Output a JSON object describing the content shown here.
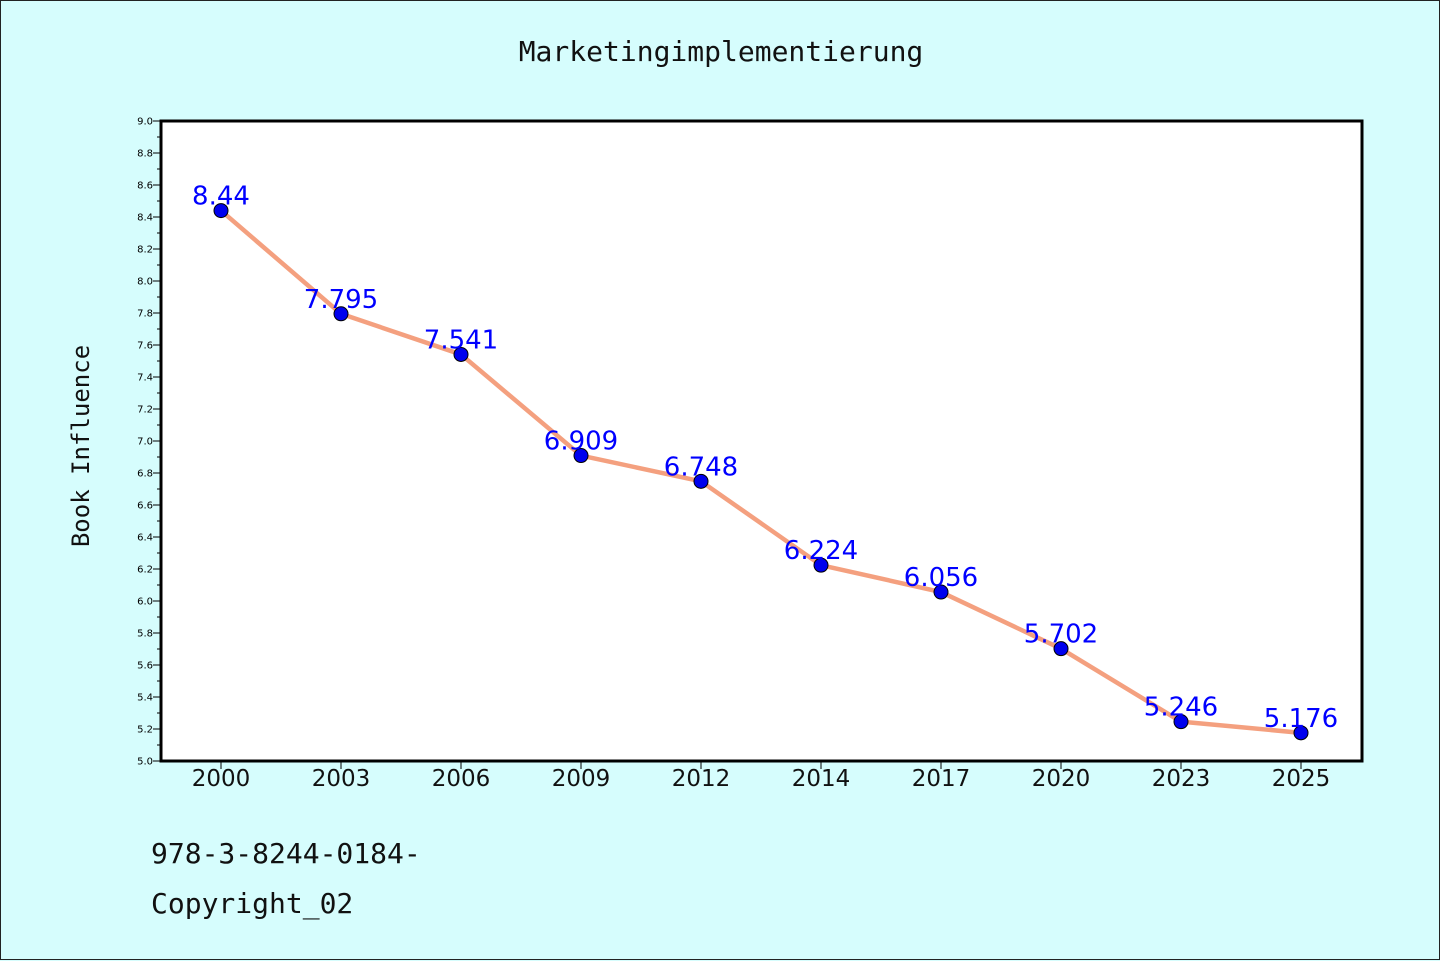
{
  "chart_data": {
    "type": "line",
    "title": "Marketingimplementierung",
    "xlabel": "",
    "ylabel": "Book Influence",
    "categories": [
      "2000",
      "2003",
      "2006",
      "2009",
      "2012",
      "2014",
      "2017",
      "2020",
      "2023",
      "2025"
    ],
    "series": [
      {
        "values": [
          8.44,
          7.795,
          7.541,
          6.909,
          6.748,
          6.224,
          6.056,
          5.702,
          5.246,
          5.176
        ]
      }
    ],
    "data_labels": [
      "8.44",
      "7.795",
      "7.541",
      "6.909",
      "6.748",
      "6.224",
      "6.056",
      "5.702",
      "5.246",
      "5.176"
    ],
    "ylim": [
      5.0,
      9.0
    ],
    "yticks": [
      "5.0",
      "5.2",
      "5.4",
      "5.6",
      "5.8",
      "6.0",
      "6.2",
      "6.4",
      "6.6",
      "6.8",
      "7.0",
      "7.2",
      "7.4",
      "7.6",
      "7.8",
      "8.0",
      "8.2",
      "8.4",
      "8.6",
      "8.8",
      "9.0"
    ],
    "grid": false,
    "colors": {
      "line": "#f4a07f",
      "marker": "#0000ee",
      "label": "#0000ff",
      "background": "#d6fdfd",
      "plot_bg": "#ffffff"
    }
  },
  "footer": {
    "line1": "978-3-8244-0184-",
    "line2": "Copyright_02"
  }
}
